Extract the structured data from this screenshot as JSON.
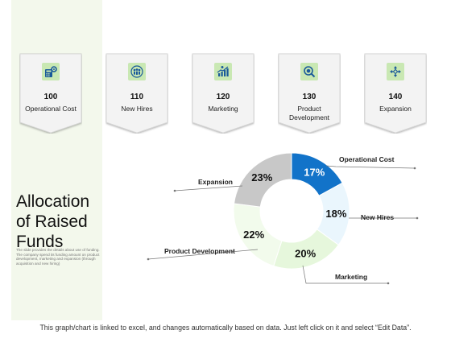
{
  "cards": [
    {
      "value": "100",
      "label": "Operational Cost",
      "icon": "calculator-gear-icon"
    },
    {
      "value": "110",
      "label": "New Hires",
      "icon": "team-people-icon"
    },
    {
      "value": "120",
      "label": "Marketing",
      "icon": "growth-chart-icon"
    },
    {
      "value": "130",
      "label": "Product Development",
      "icon": "magnifier-box-icon"
    },
    {
      "value": "140",
      "label": "Expansion",
      "icon": "expand-arrows-icon"
    }
  ],
  "sidebar": {
    "title_line1": "Allocation",
    "title_line2": "of Raised",
    "title_line3": "Funds",
    "description": "The slide provides the details about use of funding. The company spend its funding amount on product development, marketing and expansion (through acquisition and new hiring)"
  },
  "footer": "This graph/chart is linked to excel, and changes automatically based on data. Just left click on it and select “Edit Data”.",
  "colors": {
    "accent": "#0f6cbd",
    "panel": "#f3f8ec",
    "icon_bg": "#c9e8b3"
  },
  "chart_data": {
    "type": "pie",
    "donut": true,
    "categories": [
      "Operational Cost",
      "New Hires",
      "Marketing",
      "Product Development",
      "Expansion"
    ],
    "values": [
      17,
      18,
      20,
      22,
      23
    ],
    "labels": [
      "17%",
      "18%",
      "20%",
      "22%",
      "23%"
    ],
    "colors": [
      "#1273c9",
      "#eaf6fd",
      "#e6f7dc",
      "#f2fbec",
      "#c8c8c8"
    ],
    "label_colors": [
      "#ffffff",
      "#111111",
      "#111111",
      "#111111",
      "#111111"
    ]
  }
}
